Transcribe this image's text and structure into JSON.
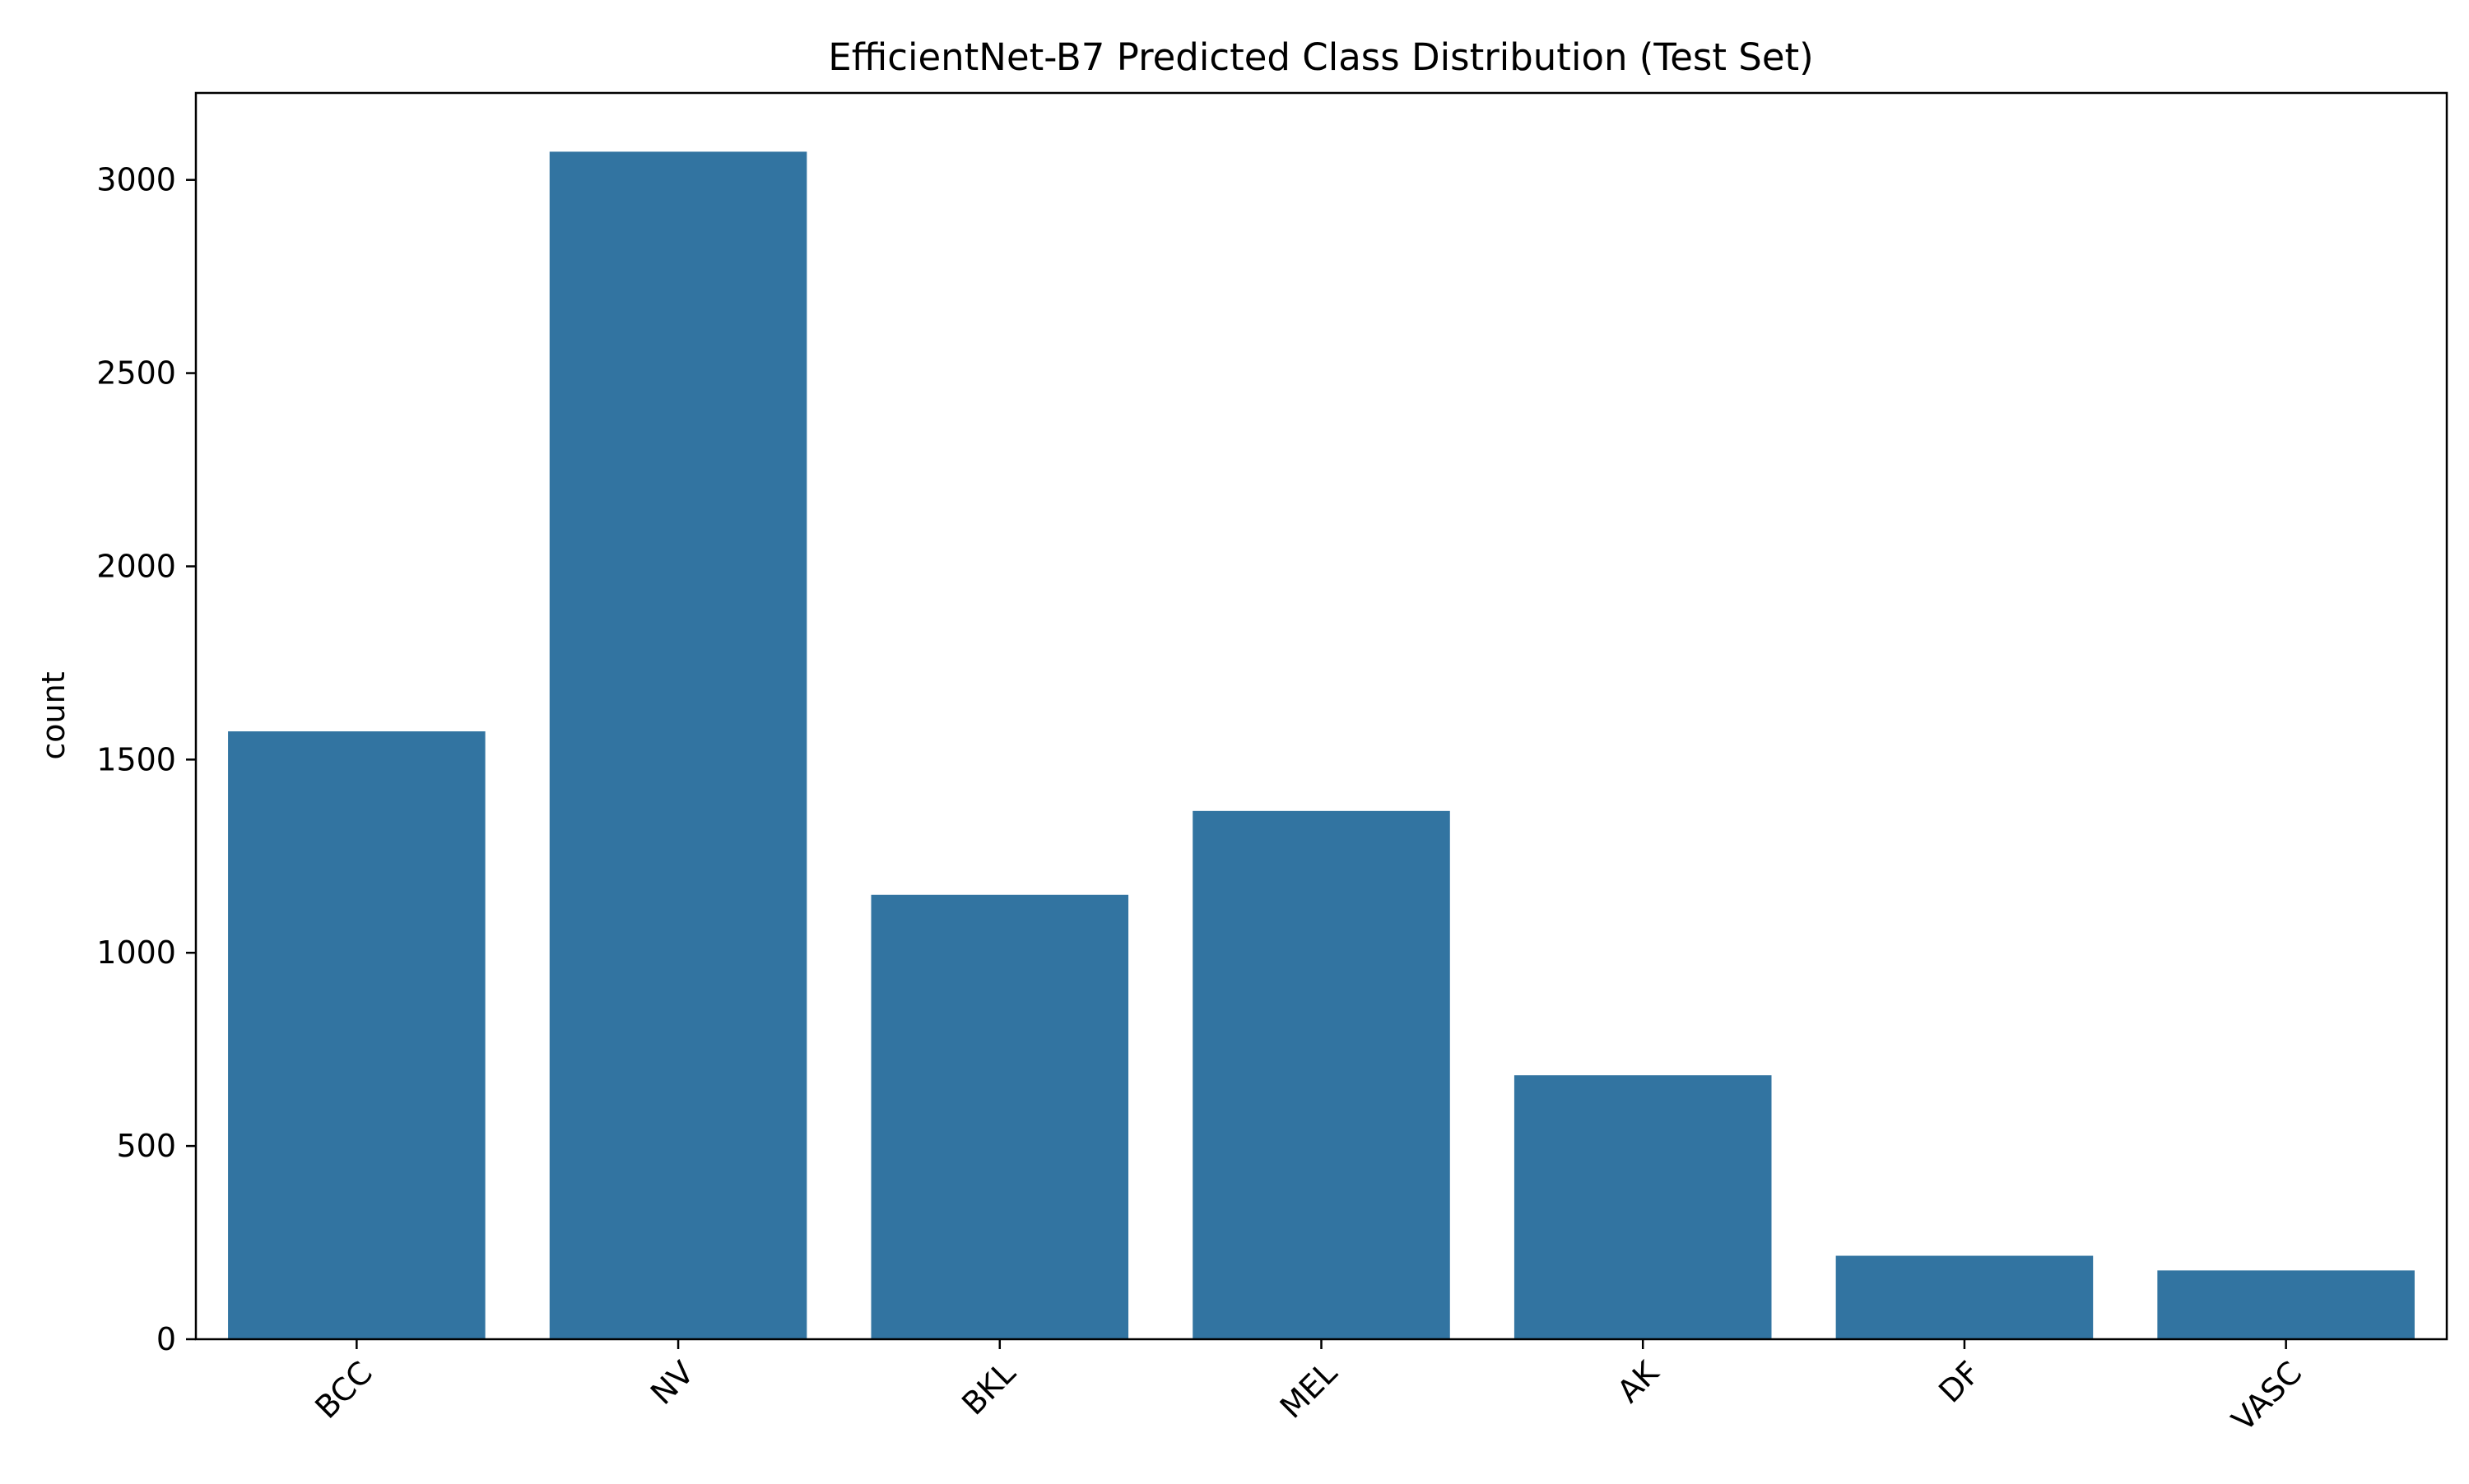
{
  "chart_data": {
    "type": "bar",
    "title": "EfficientNet-B7 Predicted Class Distribution (Test Set)",
    "xlabel": "",
    "ylabel": "count",
    "categories": [
      "BCC",
      "NV",
      "BKL",
      "MEL",
      "AK",
      "DF",
      "VASC"
    ],
    "values": [
      1573,
      3073,
      1150,
      1367,
      683,
      216,
      178
    ],
    "ylim": [
      0,
      3225
    ],
    "yticks": [
      0,
      500,
      1000,
      1500,
      2000,
      2500,
      3000
    ],
    "bar_color": "#3274a1",
    "grid": false,
    "xtick_rotation_deg": 45
  }
}
